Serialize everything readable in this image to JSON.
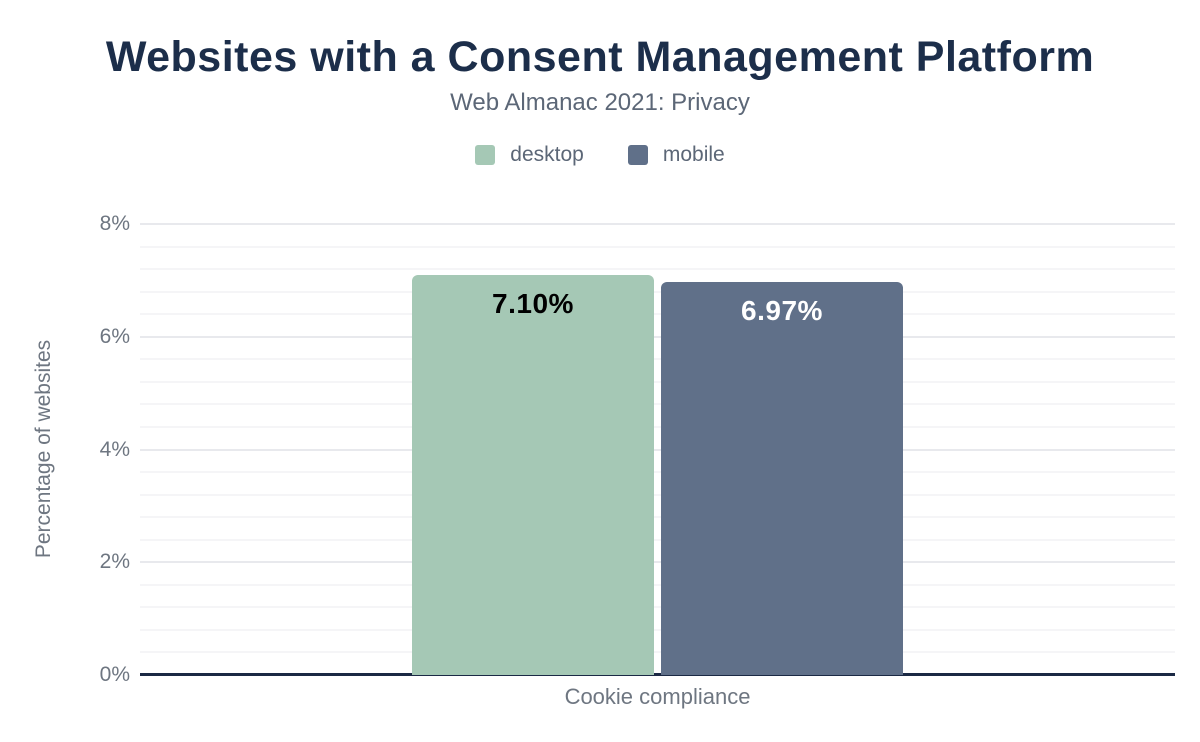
{
  "title": "Websites with a Consent Management Platform",
  "subtitle": "Web Almanac 2021: Privacy",
  "chart_data": {
    "type": "bar",
    "categories": [
      "Cookie compliance"
    ],
    "series": [
      {
        "name": "desktop",
        "values": [
          7.1
        ],
        "labels": [
          "7.10%"
        ],
        "color": "#a5c8b5",
        "label_color": "#000000"
      },
      {
        "name": "mobile",
        "values": [
          6.97
        ],
        "labels": [
          "6.97%"
        ],
        "color": "#607089",
        "label_color": "#ffffff"
      }
    ],
    "title": "Websites with a Consent Management Platform",
    "subtitle": "Web Almanac 2021: Privacy",
    "xlabel": "Cookie compliance",
    "ylabel": "Percentage of websites",
    "ylim": [
      0,
      8
    ],
    "yticks": [
      0,
      2,
      4,
      6,
      8
    ],
    "ytick_labels": [
      "0%",
      "2%",
      "4%",
      "6%",
      "8%"
    ],
    "minor_grid_step": 0.4,
    "grid": true,
    "legend_position": "top"
  },
  "colors": {
    "title_text": "#1c2e4a",
    "subtitle_text": "#5c6777",
    "axis_text": "#6e7681",
    "axis_line": "#1b2944",
    "grid_major": "#e8e9ed",
    "grid_minor": "#f5f5f7",
    "background": "#ffffff"
  }
}
